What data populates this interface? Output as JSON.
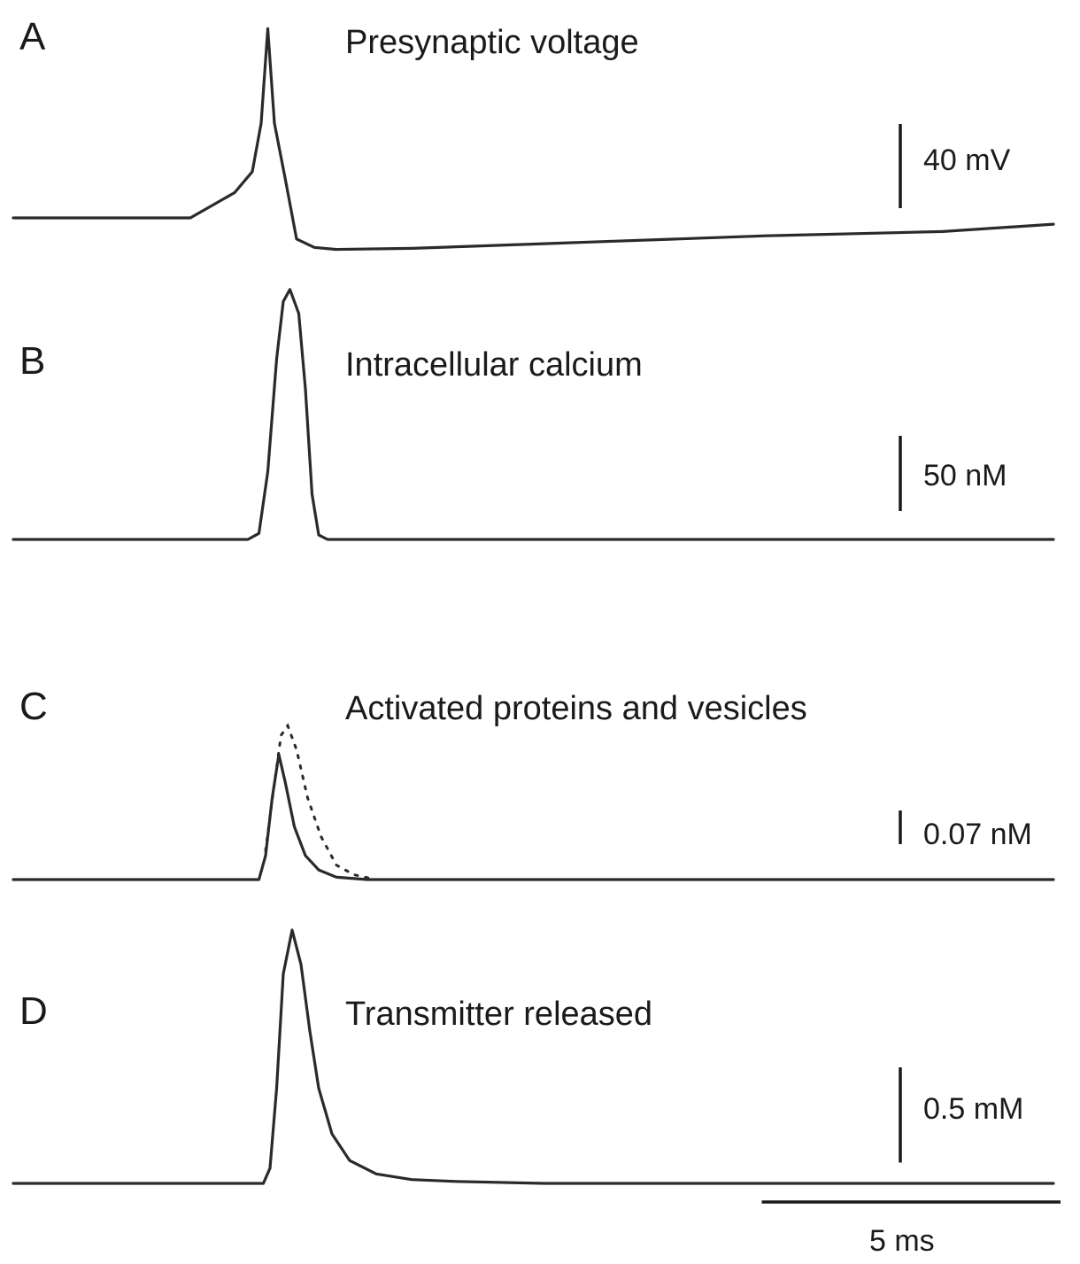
{
  "chart_data": [
    {
      "type": "line",
      "panel": "A",
      "title": "Presynaptic voltage",
      "scale_bar": {
        "value": 40,
        "unit": "mV",
        "label": "40 mV"
      },
      "series": [
        {
          "points": [
            [
              0,
              0
            ],
            [
              4.0,
              0
            ],
            [
              5.0,
              12
            ],
            [
              5.4,
              22
            ],
            [
              5.6,
              45
            ],
            [
              5.75,
              90
            ],
            [
              5.9,
              45
            ],
            [
              6.15,
              18
            ],
            [
              6.4,
              -10
            ],
            [
              6.8,
              -14
            ],
            [
              7.3,
              -15
            ],
            [
              9,
              -14.5
            ],
            [
              11,
              -13
            ],
            [
              13,
              -11.5
            ],
            [
              15,
              -10
            ],
            [
              17,
              -8.5
            ],
            [
              19,
              -7.5
            ],
            [
              21,
              -6.5
            ],
            [
              23.5,
              -3
            ]
          ]
        }
      ]
    },
    {
      "type": "line",
      "panel": "B",
      "title": "Intracellular calcium",
      "scale_bar": {
        "value": 50,
        "unit": "nM",
        "label": "50 nM"
      },
      "series": [
        {
          "points": [
            [
              0,
              0
            ],
            [
              5.3,
              0
            ],
            [
              5.55,
              4
            ],
            [
              5.75,
              45
            ],
            [
              5.95,
              120
            ],
            [
              6.1,
              158
            ],
            [
              6.25,
              166
            ],
            [
              6.45,
              150
            ],
            [
              6.6,
              100
            ],
            [
              6.75,
              30
            ],
            [
              6.9,
              3
            ],
            [
              7.1,
              0
            ],
            [
              23.5,
              0
            ]
          ]
        }
      ]
    },
    {
      "type": "line",
      "panel": "C",
      "title": "Activated proteins and vesicles",
      "scale_bar": {
        "value": 0.07,
        "unit": "nM",
        "label": "0.07 nM"
      },
      "series": [
        {
          "style": "solid",
          "points": [
            [
              0,
              0
            ],
            [
              5.55,
              0
            ],
            [
              5.7,
              0.05
            ],
            [
              5.85,
              0.17
            ],
            [
              6.0,
              0.26
            ],
            [
              6.15,
              0.2
            ],
            [
              6.35,
              0.11
            ],
            [
              6.6,
              0.05
            ],
            [
              6.9,
              0.02
            ],
            [
              7.3,
              0.005
            ],
            [
              8.0,
              0
            ],
            [
              23.5,
              0
            ]
          ]
        },
        {
          "style": "dotted",
          "points": [
            [
              5.7,
              0.06
            ],
            [
              5.9,
              0.2
            ],
            [
              6.05,
              0.3
            ],
            [
              6.2,
              0.32
            ],
            [
              6.4,
              0.27
            ],
            [
              6.65,
              0.17
            ],
            [
              6.95,
              0.09
            ],
            [
              7.3,
              0.03
            ],
            [
              7.7,
              0.01
            ],
            [
              8.2,
              0
            ]
          ]
        }
      ]
    },
    {
      "type": "line",
      "panel": "D",
      "title": "Transmitter released",
      "scale_bar": {
        "value": 0.5,
        "unit": "mM",
        "label": "0.5 mM"
      },
      "series": [
        {
          "points": [
            [
              0,
              0
            ],
            [
              5.65,
              0
            ],
            [
              5.8,
              0.08
            ],
            [
              5.95,
              0.5
            ],
            [
              6.1,
              1.1
            ],
            [
              6.3,
              1.33
            ],
            [
              6.5,
              1.15
            ],
            [
              6.7,
              0.8
            ],
            [
              6.9,
              0.5
            ],
            [
              7.2,
              0.26
            ],
            [
              7.6,
              0.12
            ],
            [
              8.2,
              0.05
            ],
            [
              9.0,
              0.02
            ],
            [
              10,
              0.01
            ],
            [
              12,
              0
            ],
            [
              23.5,
              0
            ]
          ]
        }
      ]
    }
  ],
  "time_scale": {
    "value": 5,
    "unit": "ms",
    "label": "5 ms"
  }
}
